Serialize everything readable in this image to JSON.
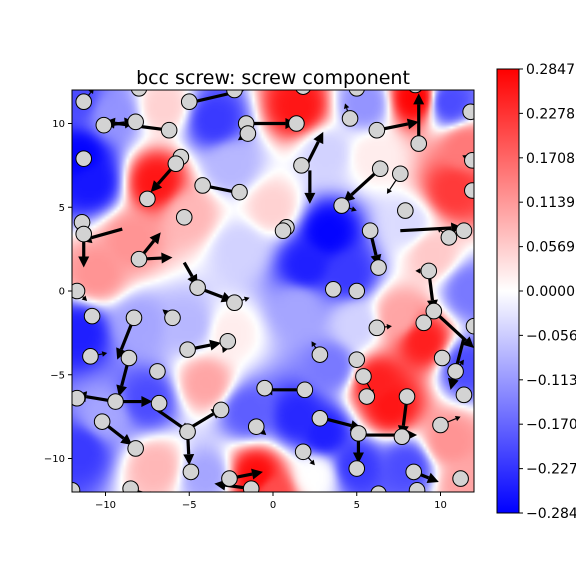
{
  "chart_data": {
    "type": "heatmap",
    "title": "bcc screw: screw component",
    "xlim": [
      -12,
      12
    ],
    "ylim": [
      -12,
      12
    ],
    "xticks": [
      "−10",
      "−5",
      "0",
      "5",
      "10"
    ],
    "yticks": [
      "10",
      "5",
      "0",
      "−5",
      "−10"
    ],
    "xtick_values": [
      -10,
      -5,
      0,
      5,
      10
    ],
    "ytick_values": [
      10,
      5,
      0,
      -5,
      -10
    ],
    "colormap": "bwr",
    "colorbar": {
      "range": [
        -0.2847,
        0.2847
      ],
      "tick_values": [
        0.2847,
        0.2278,
        0.1708,
        0.1139,
        0.0569,
        0.0,
        -0.0569,
        -0.1139,
        -0.1708,
        -0.2278,
        -0.2847
      ],
      "tick_labels": [
        "0.2847",
        "0.2278",
        "0.1708",
        "0.1139",
        "0.0569",
        "0.0000",
        "−0.0569",
        "−0.1139",
        "−0.1708",
        "−0.2278",
        "−0.2847"
      ]
    },
    "field_points": [
      {
        "x": -11.5,
        "y": 8.0,
        "v": -0.28
      },
      {
        "x": -10.8,
        "y": 6.5,
        "v": -0.26
      },
      {
        "x": -9.5,
        "y": 10.5,
        "v": -0.12
      },
      {
        "x": -7.0,
        "y": 6.5,
        "v": 0.26
      },
      {
        "x": -6.5,
        "y": 11.0,
        "v": 0.05
      },
      {
        "x": -3.5,
        "y": 10.2,
        "v": -0.22
      },
      {
        "x": -2.5,
        "y": 7.5,
        "v": -0.08
      },
      {
        "x": 1.5,
        "y": 11.0,
        "v": 0.26
      },
      {
        "x": 3.2,
        "y": 8.2,
        "v": -0.05
      },
      {
        "x": 5.5,
        "y": 11.2,
        "v": -0.12
      },
      {
        "x": 8.5,
        "y": 11.5,
        "v": 0.28
      },
      {
        "x": 10.5,
        "y": 11.3,
        "v": -0.2
      },
      {
        "x": 10.8,
        "y": 6.0,
        "v": 0.22
      },
      {
        "x": 11.5,
        "y": 8.5,
        "v": 0.15
      },
      {
        "x": 9.5,
        "y": 2.2,
        "v": 0.06
      },
      {
        "x": 3.3,
        "y": 3.5,
        "v": -0.28
      },
      {
        "x": 4.5,
        "y": 1.0,
        "v": -0.22
      },
      {
        "x": 2.0,
        "y": 1.5,
        "v": -0.25
      },
      {
        "x": -2.0,
        "y": 2.5,
        "v": -0.05
      },
      {
        "x": -8.5,
        "y": 3.0,
        "v": 0.12
      },
      {
        "x": -10.5,
        "y": 1.0,
        "v": 0.12
      },
      {
        "x": -11.5,
        "y": -2.5,
        "v": -0.25
      },
      {
        "x": -8.0,
        "y": -2.0,
        "v": -0.1
      },
      {
        "x": -5.0,
        "y": -2.0,
        "v": -0.08
      },
      {
        "x": -2.5,
        "y": -2.5,
        "v": 0.02
      },
      {
        "x": 1.5,
        "y": -1.0,
        "v": -0.1
      },
      {
        "x": 5.0,
        "y": -2.0,
        "v": -0.05
      },
      {
        "x": 7.5,
        "y": -1.5,
        "v": 0.1
      },
      {
        "x": 9.0,
        "y": -3.0,
        "v": 0.25
      },
      {
        "x": 11.5,
        "y": -4.5,
        "v": -0.2
      },
      {
        "x": 6.2,
        "y": -5.5,
        "v": 0.25
      },
      {
        "x": 7.0,
        "y": -6.8,
        "v": 0.26
      },
      {
        "x": 3.5,
        "y": -4.5,
        "v": -0.15
      },
      {
        "x": 1.5,
        "y": -7.5,
        "v": -0.24
      },
      {
        "x": 3.0,
        "y": -8.5,
        "v": -0.25
      },
      {
        "x": -1.5,
        "y": -7.2,
        "v": -0.18
      },
      {
        "x": -4.0,
        "y": -5.5,
        "v": 0.1
      },
      {
        "x": -7.5,
        "y": -6.5,
        "v": -0.2
      },
      {
        "x": -10.0,
        "y": -7.5,
        "v": -0.1
      },
      {
        "x": -11.5,
        "y": -9.5,
        "v": -0.22
      },
      {
        "x": -7.0,
        "y": -10.5,
        "v": 0.08
      },
      {
        "x": -4.0,
        "y": -11.0,
        "v": -0.1
      },
      {
        "x": -1.0,
        "y": -11.0,
        "v": 0.27
      },
      {
        "x": 2.5,
        "y": -11.0,
        "v": 0.0
      },
      {
        "x": 5.0,
        "y": -10.5,
        "v": -0.22
      },
      {
        "x": 8.0,
        "y": -10.5,
        "v": -0.2
      },
      {
        "x": 10.5,
        "y": -9.0,
        "v": 0.12
      },
      {
        "x": 11.5,
        "y": -11.5,
        "v": 0.1
      },
      {
        "x": 0.0,
        "y": 5.0,
        "v": 0.05
      },
      {
        "x": -5.0,
        "y": 4.5,
        "v": 0.08
      },
      {
        "x": 8.0,
        "y": 4.0,
        "v": -0.04
      },
      {
        "x": 6.0,
        "y": 8.0,
        "v": 0.02
      },
      {
        "x": -11.8,
        "y": 11.5,
        "v": -0.2
      },
      {
        "x": 0.0,
        "y": -12.0,
        "v": 0.2
      },
      {
        "x": 11.8,
        "y": 0.0,
        "v": -0.15
      }
    ],
    "atoms": [
      {
        "x": -11.3,
        "y": 11.3
      },
      {
        "x": -8.0,
        "y": 12.1
      },
      {
        "x": -5.0,
        "y": 11.3
      },
      {
        "x": -2.3,
        "y": 12.0
      },
      {
        "x": 1.8,
        "y": 12.2
      },
      {
        "x": 5.0,
        "y": 12.1
      },
      {
        "x": 8.5,
        "y": 12.3
      },
      {
        "x": 11.8,
        "y": 10.7
      },
      {
        "x": -10.1,
        "y": 9.9
      },
      {
        "x": -8.2,
        "y": 10.1
      },
      {
        "x": -6.2,
        "y": 9.6
      },
      {
        "x": -1.6,
        "y": 10.0
      },
      {
        "x": 1.4,
        "y": 10.0
      },
      {
        "x": 4.6,
        "y": 10.3
      },
      {
        "x": 6.2,
        "y": 9.6
      },
      {
        "x": 8.7,
        "y": 8.8
      },
      {
        "x": -11.3,
        "y": 7.9
      },
      {
        "x": -5.5,
        "y": 8.0
      },
      {
        "x": -1.5,
        "y": 9.4
      },
      {
        "x": 1.7,
        "y": 7.5
      },
      {
        "x": 6.4,
        "y": 7.3
      },
      {
        "x": 7.6,
        "y": 7.0
      },
      {
        "x": 11.9,
        "y": 7.8
      },
      {
        "x": -5.8,
        "y": 7.6
      },
      {
        "x": -4.2,
        "y": 6.3
      },
      {
        "x": -2.0,
        "y": 5.9
      },
      {
        "x": -7.5,
        "y": 5.5
      },
      {
        "x": 4.1,
        "y": 5.1
      },
      {
        "x": 7.9,
        "y": 4.8
      },
      {
        "x": 11.9,
        "y": 6.0
      },
      {
        "x": -11.4,
        "y": 4.1
      },
      {
        "x": -5.3,
        "y": 4.4
      },
      {
        "x": 0.8,
        "y": 3.8
      },
      {
        "x": 0.6,
        "y": 3.6
      },
      {
        "x": 5.8,
        "y": 3.6
      },
      {
        "x": 10.5,
        "y": 3.2
      },
      {
        "x": 11.4,
        "y": 3.6
      },
      {
        "x": -11.3,
        "y": 3.4
      },
      {
        "x": -8.0,
        "y": 1.9
      },
      {
        "x": -4.5,
        "y": 0.2
      },
      {
        "x": -2.3,
        "y": -0.7
      },
      {
        "x": 3.6,
        "y": 0.1
      },
      {
        "x": 5.0,
        "y": 0.0
      },
      {
        "x": 6.3,
        "y": 1.4
      },
      {
        "x": 9.3,
        "y": 1.2
      },
      {
        "x": -11.7,
        "y": 0.0
      },
      {
        "x": 9.6,
        "y": -1.2
      },
      {
        "x": -10.8,
        "y": -1.5
      },
      {
        "x": -8.3,
        "y": -1.6
      },
      {
        "x": -6.0,
        "y": -1.6
      },
      {
        "x": 6.2,
        "y": -2.2
      },
      {
        "x": 9.0,
        "y": -1.9
      },
      {
        "x": 12.0,
        "y": -2.1
      },
      {
        "x": -10.9,
        "y": -3.9
      },
      {
        "x": -8.6,
        "y": -4.0
      },
      {
        "x": -5.1,
        "y": -3.5
      },
      {
        "x": -2.7,
        "y": -3.0
      },
      {
        "x": 2.8,
        "y": -3.8
      },
      {
        "x": 5.0,
        "y": -4.1
      },
      {
        "x": 10.1,
        "y": -4.0
      },
      {
        "x": 10.9,
        "y": -4.8
      },
      {
        "x": -6.9,
        "y": -4.8
      },
      {
        "x": 5.4,
        "y": -5.1
      },
      {
        "x": -11.7,
        "y": -6.4
      },
      {
        "x": -9.4,
        "y": -6.6
      },
      {
        "x": -6.8,
        "y": -6.7
      },
      {
        "x": -0.5,
        "y": -5.8
      },
      {
        "x": 1.9,
        "y": -5.9
      },
      {
        "x": 5.6,
        "y": -6.3
      },
      {
        "x": 8.0,
        "y": -6.3
      },
      {
        "x": 11.4,
        "y": -6.2
      },
      {
        "x": -3.1,
        "y": -7.1
      },
      {
        "x": -10.2,
        "y": -7.8
      },
      {
        "x": 2.8,
        "y": -7.6
      },
      {
        "x": -5.1,
        "y": -8.4
      },
      {
        "x": -1.0,
        "y": -8.1
      },
      {
        "x": 5.1,
        "y": -8.5
      },
      {
        "x": 7.7,
        "y": -8.7
      },
      {
        "x": 10.0,
        "y": -8.0
      },
      {
        "x": -8.2,
        "y": -9.4
      },
      {
        "x": 1.8,
        "y": -9.6
      },
      {
        "x": -4.9,
        "y": -10.8
      },
      {
        "x": -2.6,
        "y": -11.2
      },
      {
        "x": 5.0,
        "y": -10.6
      },
      {
        "x": 8.4,
        "y": -10.8
      },
      {
        "x": 11.2,
        "y": -11.2
      },
      {
        "x": -12.0,
        "y": -11.9
      },
      {
        "x": -8.5,
        "y": -11.8
      },
      {
        "x": -1.3,
        "y": -11.8
      },
      {
        "x": 6.3,
        "y": -12.1
      },
      {
        "x": 8.6,
        "y": -11.9
      }
    ],
    "arrows": [
      {
        "x": -6.2,
        "y": 9.6,
        "dx": -3.9,
        "dy": 0.5
      },
      {
        "x": -10.1,
        "y": 9.9,
        "dx": 1.9,
        "dy": 0.2
      },
      {
        "x": -1.6,
        "y": 10.0,
        "dx": 3.0,
        "dy": 0.0
      },
      {
        "x": -4.7,
        "y": 11.3,
        "dx": 3.0,
        "dy": 0.7
      },
      {
        "x": 8.7,
        "y": 8.8,
        "dx": 0.0,
        "dy": 3.0
      },
      {
        "x": 6.2,
        "y": 9.6,
        "dx": 2.5,
        "dy": 0.5
      },
      {
        "x": 2.0,
        "y": 7.5,
        "dx": 1.0,
        "dy": 2.0
      },
      {
        "x": 2.2,
        "y": 7.2,
        "dx": 0.0,
        "dy": -2.0
      },
      {
        "x": 6.4,
        "y": 7.3,
        "dx": -2.2,
        "dy": -2.0
      },
      {
        "x": -4.2,
        "y": 6.3,
        "dx": 2.5,
        "dy": -0.5
      },
      {
        "x": -5.8,
        "y": 7.6,
        "dx": -1.5,
        "dy": -1.7
      },
      {
        "x": -9.0,
        "y": 3.7,
        "dx": -2.5,
        "dy": -0.7
      },
      {
        "x": -11.3,
        "y": 3.4,
        "dx": 0.0,
        "dy": -2.0
      },
      {
        "x": -8.0,
        "y": 1.9,
        "dx": 1.3,
        "dy": 1.6
      },
      {
        "x": -8.0,
        "y": 1.9,
        "dx": 2.0,
        "dy": 0.1
      },
      {
        "x": -5.3,
        "y": 1.7,
        "dx": 0.8,
        "dy": -1.4
      },
      {
        "x": -4.5,
        "y": 0.2,
        "dx": 2.1,
        "dy": -0.8
      },
      {
        "x": 5.8,
        "y": 3.6,
        "dx": 0.5,
        "dy": -2.1
      },
      {
        "x": 9.3,
        "y": 1.2,
        "dx": 0.3,
        "dy": -2.4
      },
      {
        "x": 9.6,
        "y": -1.2,
        "dx": 2.4,
        "dy": -2.2
      },
      {
        "x": 11.4,
        "y": -2.8,
        "dx": -0.8,
        "dy": -3.1
      },
      {
        "x": 7.6,
        "y": 3.6,
        "dx": 3.7,
        "dy": 0.2
      },
      {
        "x": 7.6,
        "y": 7.0,
        "dx": -0.8,
        "dy": -1.2
      },
      {
        "x": -8.3,
        "y": -1.6,
        "dx": -1.0,
        "dy": -2.5
      },
      {
        "x": -8.6,
        "y": -4.0,
        "dx": -0.6,
        "dy": -2.3
      },
      {
        "x": -9.4,
        "y": -6.6,
        "dx": -2.4,
        "dy": 0.4
      },
      {
        "x": -9.4,
        "y": -6.6,
        "dx": 2.2,
        "dy": 0.0
      },
      {
        "x": -5.1,
        "y": -3.5,
        "dx": 2.0,
        "dy": 0.4
      },
      {
        "x": -6.9,
        "y": -7.1,
        "dx": 2.0,
        "dy": -1.4
      },
      {
        "x": -5.0,
        "y": -8.2,
        "dx": 2.0,
        "dy": 1.2
      },
      {
        "x": -10.2,
        "y": -7.8,
        "dx": 1.8,
        "dy": -1.4
      },
      {
        "x": 1.9,
        "y": -5.9,
        "dx": -2.6,
        "dy": 0.0
      },
      {
        "x": 3.0,
        "y": -7.6,
        "dx": 2.3,
        "dy": -0.6
      },
      {
        "x": 5.4,
        "y": -5.1,
        "dx": 0.6,
        "dy": -1.1
      },
      {
        "x": 5.2,
        "y": -8.6,
        "dx": 3.4,
        "dy": 0.0
      },
      {
        "x": 8.0,
        "y": -6.3,
        "dx": -0.3,
        "dy": -2.4
      },
      {
        "x": -5.1,
        "y": -8.4,
        "dx": 0.1,
        "dy": -2.0
      },
      {
        "x": -2.6,
        "y": -11.2,
        "dx": 2.0,
        "dy": 0.4
      },
      {
        "x": -1.3,
        "y": -11.8,
        "dx": -2.2,
        "dy": 0.3
      },
      {
        "x": 8.4,
        "y": -10.8,
        "dx": 1.5,
        "dy": -0.6
      },
      {
        "x": 5.1,
        "y": -8.5,
        "dx": 0.0,
        "dy": -1.8
      },
      {
        "x": 1.8,
        "y": -9.6,
        "dx": 0.7,
        "dy": -0.8
      },
      {
        "x": -8.5,
        "y": -11.8,
        "dx": 1.4,
        "dy": -0.4
      },
      {
        "x": -10.9,
        "y": -3.9,
        "dx": 1.0,
        "dy": 0.2
      },
      {
        "x": 10.9,
        "y": -4.8,
        "dx": 0.5,
        "dy": 0.7
      },
      {
        "x": 10.0,
        "y": -8.0,
        "dx": 1.2,
        "dy": 0.5
      },
      {
        "x": 9.3,
        "y": 1.2,
        "dx": -0.8,
        "dy": 0.0
      },
      {
        "x": -11.3,
        "y": 11.3,
        "dx": 0.6,
        "dy": 0.8
      },
      {
        "x": -1.5,
        "y": 9.4,
        "dx": -0.6,
        "dy": -0.4
      },
      {
        "x": 4.1,
        "y": 5.1,
        "dx": 0.9,
        "dy": -0.3
      },
      {
        "x": -2.3,
        "y": -0.7,
        "dx": 0.9,
        "dy": 0.3
      },
      {
        "x": 6.2,
        "y": -2.2,
        "dx": 0.9,
        "dy": 0.1
      },
      {
        "x": 2.8,
        "y": -3.8,
        "dx": -0.5,
        "dy": 0.8
      },
      {
        "x": -2.7,
        "y": -3.0,
        "dx": -0.3,
        "dy": -0.7
      },
      {
        "x": -6.0,
        "y": -1.6,
        "dx": -0.6,
        "dy": 0.5
      },
      {
        "x": 11.9,
        "y": 7.8,
        "dx": -0.6,
        "dy": 0.3
      },
      {
        "x": 4.6,
        "y": 10.3,
        "dx": -0.3,
        "dy": 0.9
      },
      {
        "x": -1.0,
        "y": -8.1,
        "dx": 0.6,
        "dy": -0.5
      },
      {
        "x": 10.5,
        "y": 3.2,
        "dx": -0.7,
        "dy": 0.6
      },
      {
        "x": -11.7,
        "y": 0.0,
        "dx": 0.6,
        "dy": -0.6
      }
    ]
  }
}
